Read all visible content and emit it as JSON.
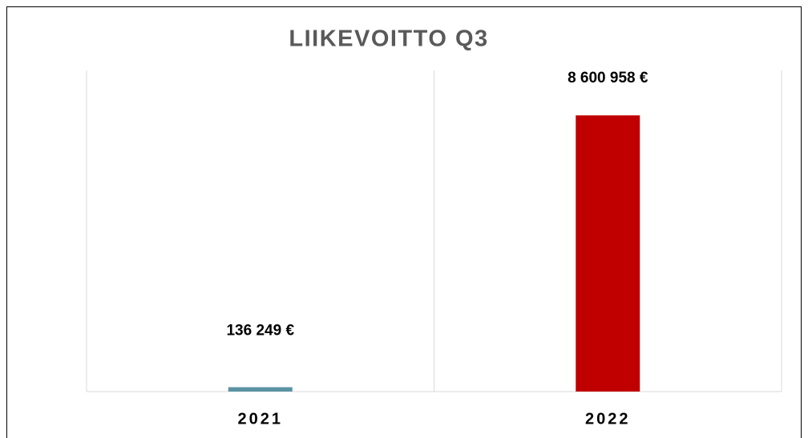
{
  "chart_data": {
    "type": "bar",
    "title": "LIIKEVOITTO Q3",
    "categories": [
      "2021",
      "2022"
    ],
    "values": [
      136249,
      8600958
    ],
    "value_labels": [
      "136 249 €",
      "8 600 958 €"
    ],
    "colors": [
      "#5b93a3",
      "#c00000"
    ],
    "ylim": [
      0,
      10000000
    ]
  }
}
